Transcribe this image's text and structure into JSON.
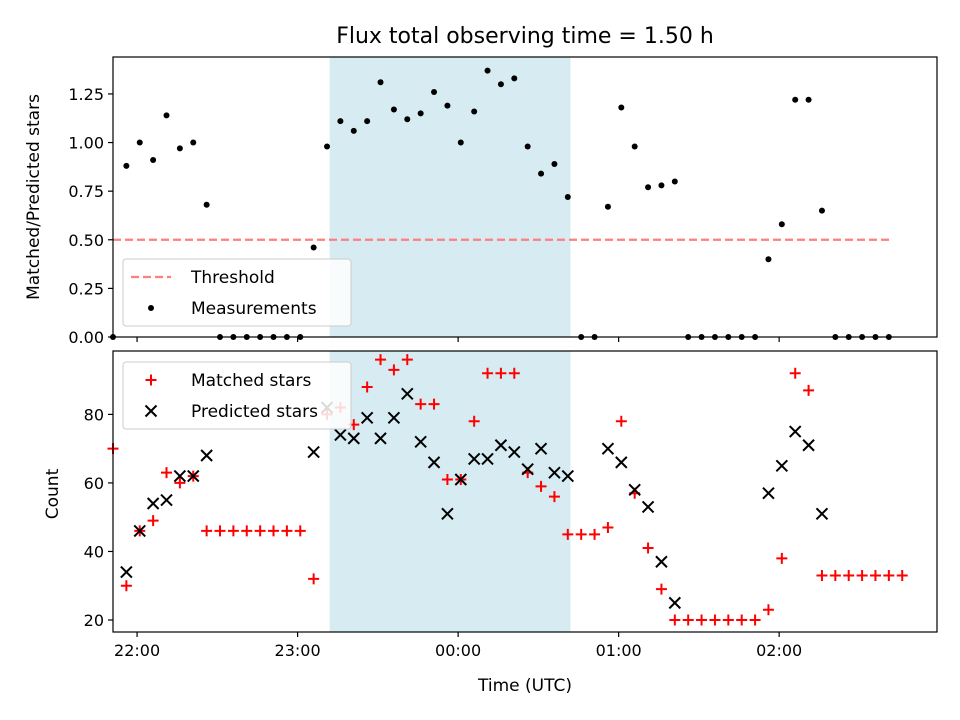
{
  "chart_data": [
    {
      "type": "scatter",
      "title": "Flux total observing time = 1.50 h",
      "xlabel": "",
      "ylabel": "Matched/Predicted stars",
      "x_range": [
        "21:51",
        "02:59"
      ],
      "ylim": [
        0,
        1.44
      ],
      "y_ticks": [
        "0.00",
        "0.25",
        "0.50",
        "0.75",
        "1.00",
        "1.25"
      ],
      "x_ticks": [
        "22:00",
        "23:00",
        "00:00",
        "01:00",
        "02:00"
      ],
      "x_tick_labels_shown": false,
      "highlight_span": {
        "from": "23:12",
        "to": "00:42",
        "color": "#add8e6"
      },
      "threshold": {
        "label": "Threshold",
        "value": 0.5,
        "from": "21:51",
        "to": "02:42",
        "color": "#ff7f7f",
        "style": "dashed"
      },
      "legend": {
        "position": "lower-left",
        "entries": [
          "Threshold",
          "Measurements"
        ]
      },
      "series": [
        {
          "name": "Measurements",
          "color": "#000000",
          "marker": "dot",
          "points": [
            [
              "21:51",
              0.0
            ],
            [
              "21:56",
              0.88
            ],
            [
              "22:01",
              1.0
            ],
            [
              "22:06",
              0.91
            ],
            [
              "22:11",
              1.14
            ],
            [
              "22:16",
              0.97
            ],
            [
              "22:21",
              1.0
            ],
            [
              "22:26",
              0.68
            ],
            [
              "22:31",
              0.0
            ],
            [
              "22:36",
              0.0
            ],
            [
              "22:41",
              0.0
            ],
            [
              "22:46",
              0.0
            ],
            [
              "22:51",
              0.0
            ],
            [
              "22:56",
              0.0
            ],
            [
              "23:01",
              0.0
            ],
            [
              "23:06",
              0.46
            ],
            [
              "23:11",
              0.98
            ],
            [
              "23:16",
              1.11
            ],
            [
              "23:21",
              1.06
            ],
            [
              "23:26",
              1.11
            ],
            [
              "23:31",
              1.31
            ],
            [
              "23:36",
              1.17
            ],
            [
              "23:41",
              1.12
            ],
            [
              "23:46",
              1.15
            ],
            [
              "23:51",
              1.26
            ],
            [
              "23:56",
              1.19
            ],
            [
              "00:01",
              1.0
            ],
            [
              "00:06",
              1.16
            ],
            [
              "00:11",
              1.37
            ],
            [
              "00:16",
              1.3
            ],
            [
              "00:21",
              1.33
            ],
            [
              "00:26",
              0.98
            ],
            [
              "00:31",
              0.84
            ],
            [
              "00:36",
              0.89
            ],
            [
              "00:41",
              0.72
            ],
            [
              "00:46",
              0.0
            ],
            [
              "00:51",
              0.0
            ],
            [
              "00:56",
              0.67
            ],
            [
              "01:01",
              1.18
            ],
            [
              "01:06",
              0.98
            ],
            [
              "01:11",
              0.77
            ],
            [
              "01:16",
              0.78
            ],
            [
              "01:21",
              0.8
            ],
            [
              "01:26",
              0.0
            ],
            [
              "01:31",
              0.0
            ],
            [
              "01:36",
              0.0
            ],
            [
              "01:41",
              0.0
            ],
            [
              "01:46",
              0.0
            ],
            [
              "01:51",
              0.0
            ],
            [
              "01:56",
              0.4
            ],
            [
              "02:01",
              0.58
            ],
            [
              "02:06",
              1.22
            ],
            [
              "02:11",
              1.22
            ],
            [
              "02:16",
              0.65
            ],
            [
              "02:21",
              0.0
            ],
            [
              "02:26",
              0.0
            ],
            [
              "02:31",
              0.0
            ],
            [
              "02:36",
              0.0
            ],
            [
              "02:41",
              0.0
            ]
          ]
        }
      ]
    },
    {
      "type": "scatter",
      "title": "",
      "xlabel": "Time (UTC)",
      "ylabel": "Count",
      "x_range": [
        "21:51",
        "02:59"
      ],
      "ylim": [
        16.5,
        98.5
      ],
      "y_ticks": [
        "20",
        "40",
        "60",
        "80"
      ],
      "x_ticks": [
        "22:00",
        "23:00",
        "00:00",
        "01:00",
        "02:00"
      ],
      "highlight_span": {
        "from": "23:12",
        "to": "00:42",
        "color": "#add8e6"
      },
      "legend": {
        "position": "top-left",
        "entries": [
          "Matched stars",
          "Predicted stars"
        ]
      },
      "series": [
        {
          "name": "Matched stars",
          "color": "#ff0000",
          "marker": "plus",
          "points": [
            [
              "21:51",
              70
            ],
            [
              "21:56",
              30
            ],
            [
              "22:01",
              46
            ],
            [
              "22:06",
              49
            ],
            [
              "22:11",
              63
            ],
            [
              "22:16",
              60
            ],
            [
              "22:21",
              62
            ],
            [
              "22:26",
              46
            ],
            [
              "22:31",
              46
            ],
            [
              "22:36",
              46
            ],
            [
              "22:41",
              46
            ],
            [
              "22:46",
              46
            ],
            [
              "22:51",
              46
            ],
            [
              "22:56",
              46
            ],
            [
              "23:01",
              46
            ],
            [
              "23:06",
              32
            ],
            [
              "23:11",
              80
            ],
            [
              "23:16",
              82
            ],
            [
              "23:21",
              77
            ],
            [
              "23:26",
              88
            ],
            [
              "23:31",
              96
            ],
            [
              "23:36",
              93
            ],
            [
              "23:41",
              96
            ],
            [
              "23:46",
              83
            ],
            [
              "23:51",
              83
            ],
            [
              "23:56",
              61
            ],
            [
              "00:01",
              61
            ],
            [
              "00:06",
              78
            ],
            [
              "00:11",
              92
            ],
            [
              "00:16",
              92
            ],
            [
              "00:21",
              92
            ],
            [
              "00:26",
              63
            ],
            [
              "00:31",
              59
            ],
            [
              "00:36",
              56
            ],
            [
              "00:41",
              45
            ],
            [
              "00:46",
              45
            ],
            [
              "00:51",
              45
            ],
            [
              "00:56",
              47
            ],
            [
              "01:01",
              78
            ],
            [
              "01:06",
              57
            ],
            [
              "01:11",
              41
            ],
            [
              "01:16",
              29
            ],
            [
              "01:21",
              20
            ],
            [
              "01:26",
              20
            ],
            [
              "01:31",
              20
            ],
            [
              "01:36",
              20
            ],
            [
              "01:41",
              20
            ],
            [
              "01:46",
              20
            ],
            [
              "01:51",
              20
            ],
            [
              "01:56",
              23
            ],
            [
              "02:01",
              38
            ],
            [
              "02:06",
              92
            ],
            [
              "02:11",
              87
            ],
            [
              "02:16",
              33
            ],
            [
              "02:21",
              33
            ],
            [
              "02:26",
              33
            ],
            [
              "02:31",
              33
            ],
            [
              "02:36",
              33
            ],
            [
              "02:41",
              33
            ],
            [
              "02:46",
              33
            ]
          ]
        },
        {
          "name": "Predicted stars",
          "color": "#000000",
          "marker": "x",
          "points": [
            [
              "21:56",
              34
            ],
            [
              "22:01",
              46
            ],
            [
              "22:06",
              54
            ],
            [
              "22:11",
              55
            ],
            [
              "22:16",
              62
            ],
            [
              "22:21",
              62
            ],
            [
              "22:26",
              68
            ],
            [
              "23:06",
              69
            ],
            [
              "23:11",
              82
            ],
            [
              "23:16",
              74
            ],
            [
              "23:21",
              73
            ],
            [
              "23:26",
              79
            ],
            [
              "23:31",
              73
            ],
            [
              "23:36",
              79
            ],
            [
              "23:41",
              86
            ],
            [
              "23:46",
              72
            ],
            [
              "23:51",
              66
            ],
            [
              "23:56",
              51
            ],
            [
              "00:01",
              61
            ],
            [
              "00:06",
              67
            ],
            [
              "00:11",
              67
            ],
            [
              "00:16",
              71
            ],
            [
              "00:21",
              69
            ],
            [
              "00:26",
              64
            ],
            [
              "00:31",
              70
            ],
            [
              "00:36",
              63
            ],
            [
              "00:41",
              62
            ],
            [
              "00:56",
              70
            ],
            [
              "01:01",
              66
            ],
            [
              "01:06",
              58
            ],
            [
              "01:11",
              53
            ],
            [
              "01:16",
              37
            ],
            [
              "01:21",
              25
            ],
            [
              "01:56",
              57
            ],
            [
              "02:01",
              65
            ],
            [
              "02:06",
              75
            ],
            [
              "02:11",
              71
            ],
            [
              "02:16",
              51
            ]
          ]
        }
      ]
    }
  ]
}
